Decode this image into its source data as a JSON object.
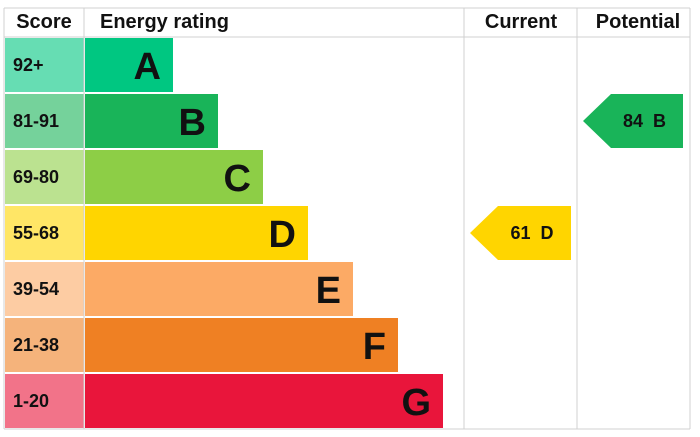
{
  "header": {
    "score": "Score",
    "rating": "Energy rating",
    "current": "Current",
    "potential": "Potential"
  },
  "bands": [
    {
      "score": "92+",
      "letter": "A",
      "color": "#00c781"
    },
    {
      "score": "81-91",
      "letter": "B",
      "color": "#19b459"
    },
    {
      "score": "69-80",
      "letter": "C",
      "color": "#8dce46"
    },
    {
      "score": "55-68",
      "letter": "D",
      "color": "#ffd500"
    },
    {
      "score": "39-54",
      "letter": "E",
      "color": "#fcaa65"
    },
    {
      "score": "21-38",
      "letter": "F",
      "color": "#ef8023"
    },
    {
      "score": "1-20",
      "letter": "G",
      "color": "#e9153b"
    }
  ],
  "current": {
    "value": 61,
    "band": "D"
  },
  "potential": {
    "value": 84,
    "band": "B"
  }
}
